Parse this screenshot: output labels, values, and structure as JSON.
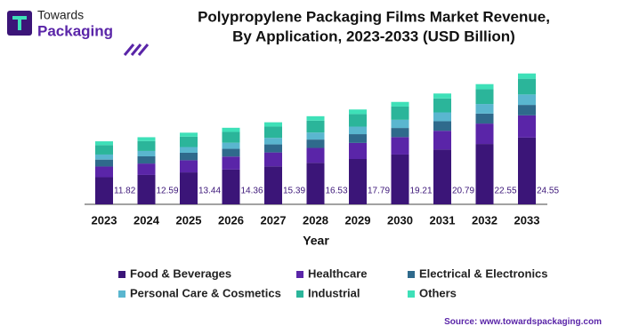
{
  "logo": {
    "line1": "Towards",
    "line2": "Packaging"
  },
  "chart_data": {
    "type": "bar",
    "stacked": true,
    "title": [
      "Polypropylene Packaging Films Market Revenue,",
      "By Application, 2023-2033 (USD Billion)"
    ],
    "x_label": "Year",
    "categories": [
      "2023",
      "2024",
      "2025",
      "2026",
      "2027",
      "2028",
      "2029",
      "2030",
      "2031",
      "2032",
      "2033"
    ],
    "series": [
      {
        "name": "Food & Beverages",
        "color": "#3b1578",
        "values": [
          5.08,
          5.51,
          5.99,
          6.52,
          7.11,
          7.77,
          8.5,
          9.34,
          10.27,
          11.32,
          12.52
        ]
      },
      {
        "name": "Healthcare",
        "color": "#5a25a8",
        "values": [
          2.01,
          2.14,
          2.28,
          2.44,
          2.62,
          2.81,
          3.02,
          3.27,
          3.53,
          3.83,
          4.17
        ]
      },
      {
        "name": "Electrical & Electronics",
        "color": "#2f6a8c",
        "values": [
          1.3,
          1.35,
          1.4,
          1.45,
          1.51,
          1.57,
          1.64,
          1.71,
          1.79,
          1.87,
          1.96
        ]
      },
      {
        "name": "Personal Care & Cosmetics",
        "color": "#5ab6cf",
        "values": [
          0.95,
          1.01,
          1.08,
          1.15,
          1.23,
          1.32,
          1.42,
          1.54,
          1.66,
          1.8,
          1.96
        ]
      },
      {
        "name": "Industrial",
        "color": "#2bb59a",
        "values": [
          1.77,
          1.85,
          1.94,
          2.02,
          2.12,
          2.23,
          2.35,
          2.48,
          2.62,
          2.77,
          2.95
        ]
      },
      {
        "name": "Others",
        "color": "#3ee0b8",
        "values": [
          0.71,
          0.73,
          0.75,
          0.78,
          0.8,
          0.83,
          0.86,
          0.87,
          0.92,
          0.96,
          0.99
        ]
      }
    ],
    "totals": [
      11.82,
      12.59,
      13.44,
      14.36,
      15.39,
      16.53,
      17.79,
      19.21,
      20.79,
      22.55,
      24.55
    ],
    "label_color": "#3b1578",
    "source_label": "Source:",
    "source_url": "www.towardspackaging.com"
  }
}
